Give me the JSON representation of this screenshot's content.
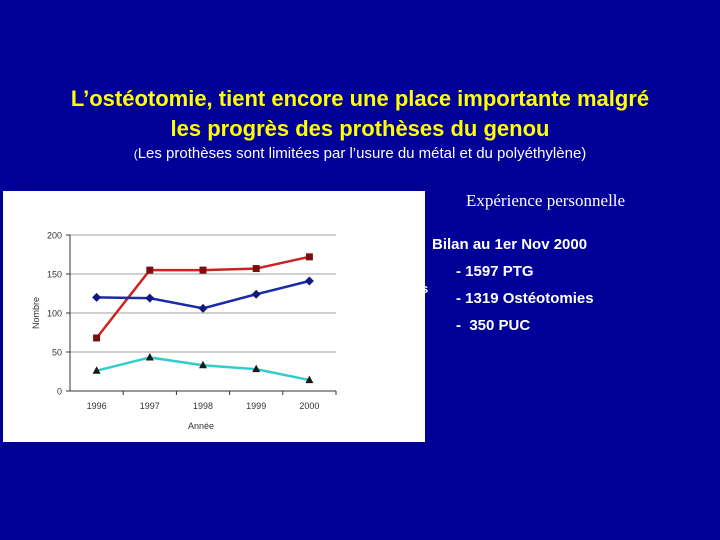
{
  "slide": {
    "title_line1": "L’ostéotomie, tient encore une place importante malgré",
    "title_line2": "les progrès des prothèses du genou",
    "subtitle_paren": "(",
    "subtitle_rest": "Les prothèses sont limitées par l’usure du métal et du polyéthylène)",
    "experience_label": "Expérience personnelle",
    "stray_char": "s"
  },
  "bilan": {
    "title": "Bilan au 1er Nov 2000",
    "lines": [
      "- 1597 PTG",
      "- 1319 Ostéotomies",
      "-  350 PUC"
    ]
  },
  "colors": {
    "background": "#000099",
    "title": "#ffff00",
    "series_red": "#cc2222",
    "series_blue": "#1a2aa8",
    "series_cyan": "#33cccc"
  },
  "chart_data": {
    "type": "line",
    "x": [
      "1996",
      "1997",
      "1998",
      "1999",
      "2000"
    ],
    "xlabel": "Année",
    "ylabel": "Nombre",
    "ylim": [
      0,
      200
    ],
    "yticks": [
      "0",
      "50",
      "100",
      "150",
      "200"
    ],
    "grid": "horizontal",
    "series": [
      {
        "values": [
          68,
          155,
          155,
          157,
          172
        ],
        "color": "#cc2222",
        "marker": "square"
      },
      {
        "values": [
          120,
          119,
          106,
          124,
          141
        ],
        "color": "#1a2aa8",
        "marker": "diamond"
      },
      {
        "values": [
          26,
          43,
          33,
          28,
          14
        ],
        "color": "#33cccc",
        "marker": "triangle"
      }
    ]
  }
}
